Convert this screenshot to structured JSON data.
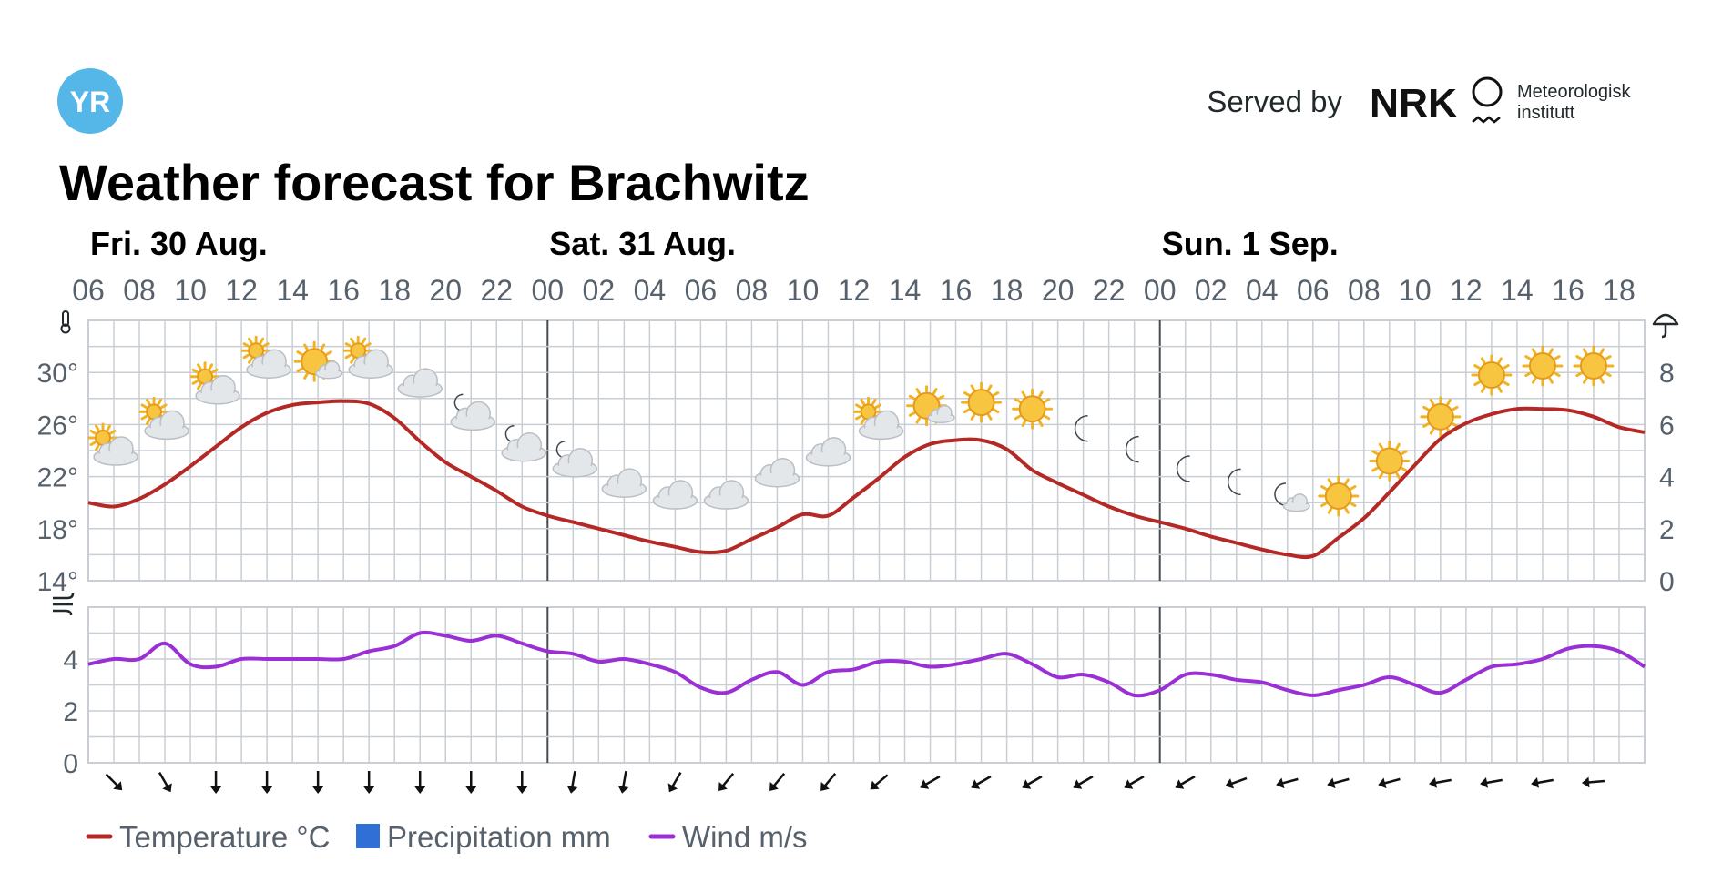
{
  "header": {
    "logo_text": "YR",
    "title": "Weather forecast for Brachwitz",
    "served_by": "Served by",
    "nrk_logo": "NRK",
    "met_line1": "Meteorologisk",
    "met_line2": "institutt"
  },
  "days": [
    {
      "label": "Fri. 30 Aug.",
      "hour": 6
    },
    {
      "label": "Sat. 31 Aug.",
      "hour": 24
    },
    {
      "label": "Sun. 1 Sep.",
      "hour": 48
    }
  ],
  "colors": {
    "temperature": "#b42826",
    "precipitation": "#2f6fd6",
    "wind": "#9b2fd6",
    "grid": "#c9ced4"
  },
  "legend": [
    {
      "label": "Temperature °C",
      "color_key": "temperature",
      "shape": "line"
    },
    {
      "label": "Precipitation mm",
      "color_key": "precipitation",
      "shape": "square"
    },
    {
      "label": "Wind m/s",
      "color_key": "wind",
      "shape": "line"
    }
  ],
  "chart_data": [
    {
      "type": "line",
      "x_unit": "hours from Fri. 30 Aug. 00:00",
      "x_range": [
        6,
        67
      ],
      "x_tick_labels": [
        "06",
        "08",
        "10",
        "12",
        "14",
        "16",
        "18",
        "20",
        "22",
        "00",
        "02",
        "04",
        "06",
        "08",
        "10",
        "12",
        "14",
        "16",
        "18",
        "20",
        "22",
        "00",
        "02",
        "04",
        "06",
        "08",
        "10",
        "12",
        "14",
        "16",
        "18"
      ],
      "left_axis": {
        "ylim": [
          14,
          34
        ],
        "ticks": [
          "14°",
          "18°",
          "22°",
          "26°",
          "30°"
        ],
        "tick_values": [
          14,
          18,
          22,
          26,
          30
        ],
        "icon": "thermometer-icon"
      },
      "right_axis": {
        "ylim": [
          0,
          10
        ],
        "ticks": [
          "0",
          "2",
          "4",
          "6",
          "8"
        ],
        "tick_values": [
          0,
          2,
          4,
          6,
          8
        ],
        "icon": "umbrella-icon"
      },
      "series": [
        {
          "name": "Temperature °C",
          "x": [
            6,
            7,
            8,
            9,
            10,
            11,
            12,
            13,
            14,
            15,
            16,
            17,
            18,
            19,
            20,
            21,
            22,
            23,
            24,
            25,
            26,
            27,
            28,
            29,
            30,
            31,
            32,
            33,
            34,
            35,
            36,
            37,
            38,
            39,
            40,
            41,
            42,
            43,
            44,
            45,
            46,
            47,
            48,
            49,
            50,
            51,
            52,
            53,
            54,
            55,
            56,
            57,
            58,
            59,
            60,
            61,
            62,
            63,
            64,
            65,
            66,
            67
          ],
          "y": [
            20,
            19.7,
            20.3,
            21.4,
            22.8,
            24.3,
            25.8,
            26.9,
            27.5,
            27.7,
            27.8,
            27.6,
            26.5,
            24.7,
            23.1,
            22,
            20.9,
            19.7,
            19,
            18.5,
            18,
            17.5,
            17,
            16.6,
            16.2,
            16.3,
            17.2,
            18.1,
            19.1,
            19,
            20.4,
            21.9,
            23.5,
            24.5,
            24.8,
            24.8,
            24.1,
            22.5,
            21.5,
            20.6,
            19.7,
            19,
            18.5,
            18,
            17.4,
            16.9,
            16.4,
            16,
            15.9,
            17.3,
            18.8,
            20.8,
            22.9,
            24.9,
            26.1,
            26.8,
            27.2,
            27.2,
            27.1,
            26.6,
            25.8,
            25.4
          ]
        },
        {
          "name": "Precipitation mm",
          "x": [],
          "y": []
        }
      ],
      "symbols": [
        {
          "x": 7,
          "y": 24,
          "symbol": "partly-cloudy-day"
        },
        {
          "x": 9,
          "y": 26,
          "symbol": "partly-cloudy-day"
        },
        {
          "x": 11,
          "y": 28.7,
          "symbol": "partly-cloudy-day"
        },
        {
          "x": 13,
          "y": 30.7,
          "symbol": "partly-cloudy-day"
        },
        {
          "x": 15,
          "y": 30.7,
          "symbol": "fair-day"
        },
        {
          "x": 17,
          "y": 30.7,
          "symbol": "partly-cloudy-day"
        },
        {
          "x": 19,
          "y": 29.1,
          "symbol": "cloudy"
        },
        {
          "x": 21,
          "y": 26.7,
          "symbol": "partly-cloudy-night"
        },
        {
          "x": 23,
          "y": 24.3,
          "symbol": "partly-cloudy-night"
        },
        {
          "x": 25,
          "y": 23.1,
          "symbol": "partly-cloudy-night"
        },
        {
          "x": 27,
          "y": 21.4,
          "symbol": "cloudy"
        },
        {
          "x": 29,
          "y": 20.5,
          "symbol": "cloudy"
        },
        {
          "x": 31,
          "y": 20.5,
          "symbol": "cloudy"
        },
        {
          "x": 33,
          "y": 22.2,
          "symbol": "cloudy"
        },
        {
          "x": 35,
          "y": 23.8,
          "symbol": "cloudy"
        },
        {
          "x": 37,
          "y": 26,
          "symbol": "partly-cloudy-day"
        },
        {
          "x": 39,
          "y": 27.3,
          "symbol": "fair-day"
        },
        {
          "x": 41,
          "y": 27.7,
          "symbol": "clear-day"
        },
        {
          "x": 43,
          "y": 27.2,
          "symbol": "clear-day"
        },
        {
          "x": 45,
          "y": 25.7,
          "symbol": "clear-night"
        },
        {
          "x": 47,
          "y": 24.1,
          "symbol": "clear-night"
        },
        {
          "x": 49,
          "y": 22.6,
          "symbol": "clear-night"
        },
        {
          "x": 51,
          "y": 21.6,
          "symbol": "clear-night"
        },
        {
          "x": 53,
          "y": 20.5,
          "symbol": "fair-night"
        },
        {
          "x": 55,
          "y": 20.5,
          "symbol": "clear-day"
        },
        {
          "x": 57,
          "y": 23.2,
          "symbol": "clear-day"
        },
        {
          "x": 59,
          "y": 26.6,
          "symbol": "clear-day"
        },
        {
          "x": 61,
          "y": 29.8,
          "symbol": "clear-day"
        },
        {
          "x": 63,
          "y": 30.5,
          "symbol": "clear-day"
        },
        {
          "x": 65,
          "y": 30.5,
          "symbol": "clear-day"
        }
      ]
    },
    {
      "type": "line",
      "x_range": [
        6,
        67
      ],
      "ylim": [
        0,
        6
      ],
      "ticks": [
        "0",
        "2",
        "4"
      ],
      "tick_values": [
        0,
        2,
        4
      ],
      "icon": "wind-icon",
      "series": [
        {
          "name": "Wind m/s",
          "x": [
            6,
            7,
            8,
            9,
            10,
            11,
            12,
            13,
            14,
            15,
            16,
            17,
            18,
            19,
            20,
            21,
            22,
            23,
            24,
            25,
            26,
            27,
            28,
            29,
            30,
            31,
            32,
            33,
            34,
            35,
            36,
            37,
            38,
            39,
            40,
            41,
            42,
            43,
            44,
            45,
            46,
            47,
            48,
            49,
            50,
            51,
            52,
            53,
            54,
            55,
            56,
            57,
            58,
            59,
            60,
            61,
            62,
            63,
            64,
            65,
            66,
            67
          ],
          "y": [
            3.8,
            4,
            4,
            4.6,
            3.8,
            3.7,
            4,
            4,
            4,
            4,
            4,
            4.3,
            4.5,
            5,
            4.9,
            4.7,
            4.9,
            4.6,
            4.3,
            4.2,
            3.9,
            4,
            3.8,
            3.5,
            2.9,
            2.7,
            3.2,
            3.5,
            3,
            3.5,
            3.6,
            3.9,
            3.9,
            3.7,
            3.8,
            4,
            4.2,
            3.8,
            3.3,
            3.4,
            3.1,
            2.6,
            2.8,
            3.4,
            3.4,
            3.2,
            3.1,
            2.8,
            2.6,
            2.8,
            3,
            3.3,
            3,
            2.7,
            3.2,
            3.7,
            3.8,
            4,
            4.4,
            4.5,
            4.3,
            3.7
          ]
        }
      ],
      "wind_directions_deg": [
        315,
        330,
        0,
        0,
        0,
        0,
        0,
        0,
        0,
        10,
        10,
        30,
        40,
        40,
        40,
        50,
        60,
        60,
        60,
        60,
        60,
        60,
        70,
        75,
        75,
        75,
        80,
        80,
        80,
        85
      ]
    }
  ]
}
